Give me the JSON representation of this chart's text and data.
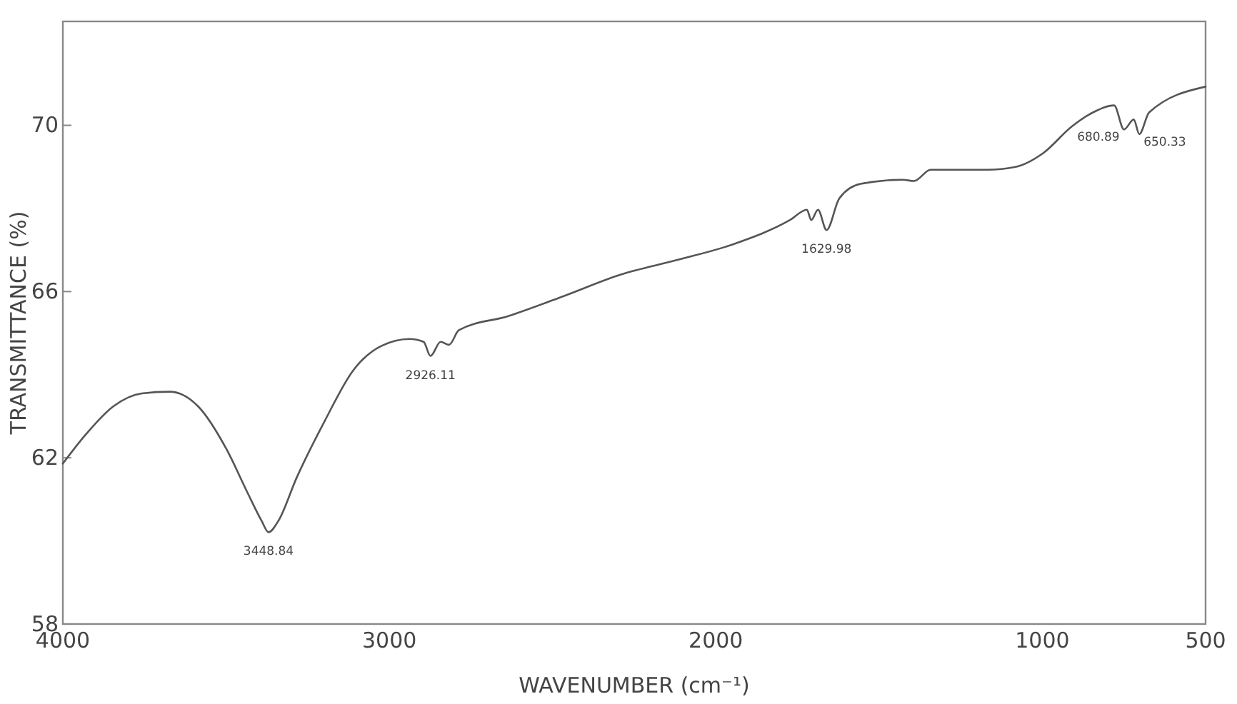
{
  "chart_data": {
    "type": "line",
    "xlabel": "WAVENUMBER (cm⁻¹)",
    "ylabel": "TRANSMITTANCE (%)",
    "xlim": [
      4000,
      500
    ],
    "ylim": [
      58,
      72.5
    ],
    "xticks": [
      4000,
      3000,
      2000,
      1000,
      500
    ],
    "yticks": [
      58,
      62,
      66,
      70
    ],
    "grid": false,
    "marker": "none",
    "line_style": "solid",
    "series": [
      {
        "color": "#555555",
        "x": [
          4000,
          3931,
          3845,
          3758,
          3672,
          3586,
          3499,
          3435,
          3391,
          3370,
          3340,
          3284,
          3197,
          3111,
          3025,
          2938,
          2895,
          2874,
          2843,
          2817,
          2787,
          2636,
          2463,
          2291,
          2118,
          1946,
          1773,
          1721,
          1708,
          1687,
          1661,
          1622,
          1557,
          1428,
          1393,
          1342,
          1169,
          1082,
          996,
          910,
          845,
          780,
          750,
          720,
          703,
          673,
          500
        ],
        "values": [
          61.86,
          62.55,
          63.24,
          63.55,
          63.59,
          63.24,
          62.21,
          61.17,
          60.48,
          60.21,
          60.48,
          61.52,
          62.9,
          64.1,
          64.69,
          64.86,
          64.79,
          64.45,
          64.79,
          64.72,
          65.07,
          65.41,
          65.9,
          66.41,
          66.76,
          67.14,
          67.72,
          67.97,
          67.72,
          67.97,
          67.48,
          68.24,
          68.59,
          68.69,
          68.66,
          68.93,
          68.93,
          69.0,
          69.34,
          69.97,
          70.31,
          70.48,
          69.9,
          70.14,
          69.79,
          70.31,
          70.93
        ]
      }
    ],
    "annotations": [
      {
        "text": "3448.84",
        "x": 3370,
        "y": 60.21
      },
      {
        "text": "2926.11",
        "x": 2874,
        "y": 64.45
      },
      {
        "text": "1629.98",
        "x": 1661,
        "y": 67.48
      },
      {
        "text": "680.89",
        "x": 750,
        "y": 69.9
      },
      {
        "text": "650.33",
        "x": 703,
        "y": 69.79
      }
    ]
  }
}
